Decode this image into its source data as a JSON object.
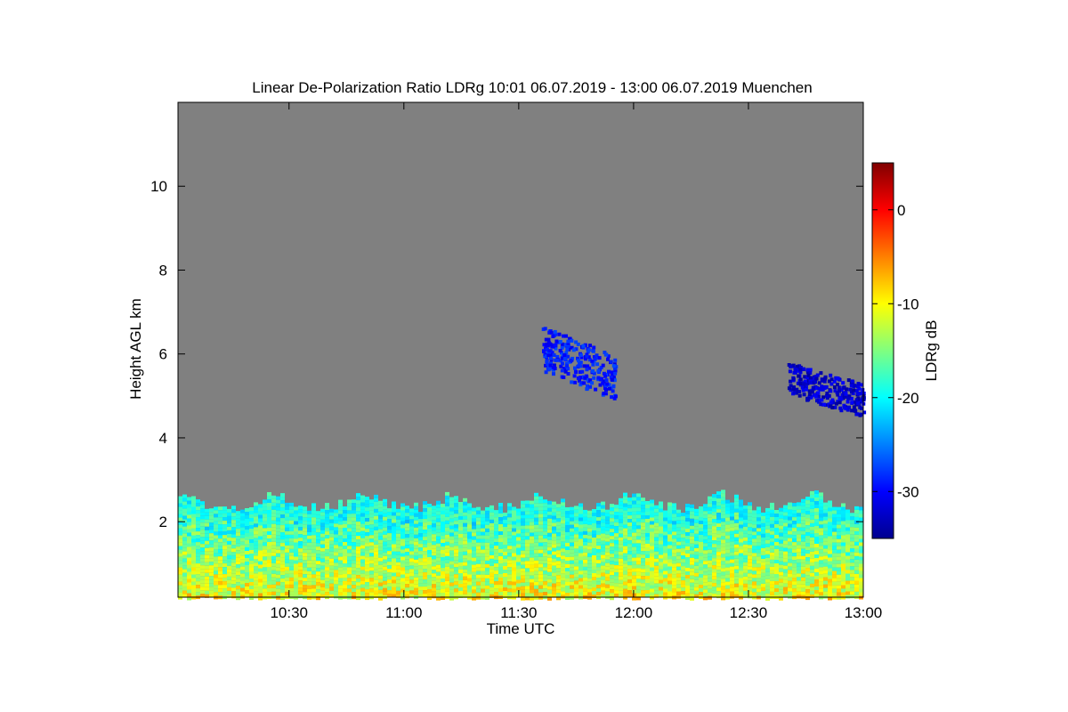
{
  "chart_data": {
    "type": "heatmap",
    "title": "Linear De-Polarization Ratio LDRg   10:01 06.07.2019 - 13:00 06.07.2019 Muenchen",
    "xlabel": "Time UTC",
    "ylabel": "Height AGL km",
    "x_range_minutes_utc": [
      601,
      780
    ],
    "x_ticks": [
      {
        "label": "10:30",
        "value": 630
      },
      {
        "label": "11:00",
        "value": 660
      },
      {
        "label": "11:30",
        "value": 690
      },
      {
        "label": "12:00",
        "value": 720
      },
      {
        "label": "12:30",
        "value": 750
      },
      {
        "label": "13:00",
        "value": 780
      }
    ],
    "ylim": [
      0.2,
      12.0
    ],
    "y_ticks": [
      {
        "label": "2",
        "value": 2
      },
      {
        "label": "4",
        "value": 4
      },
      {
        "label": "6",
        "value": 6
      },
      {
        "label": "8",
        "value": 8
      },
      {
        "label": "10",
        "value": 10
      }
    ],
    "colorbar": {
      "label": "LDRg dB",
      "range": [
        -35,
        5
      ],
      "ticks": [
        {
          "label": "0",
          "value": 0
        },
        {
          "label": "-10",
          "value": -10
        },
        {
          "label": "-20",
          "value": -20
        },
        {
          "label": "-30",
          "value": -30
        }
      ],
      "colormap": "jet"
    },
    "background_color": "#808080",
    "regions": [
      {
        "name": "boundary-layer",
        "time_range": [
          601,
          780
        ],
        "height_range": [
          0.2,
          2.8
        ],
        "ldr_typical": -12
      },
      {
        "name": "cloud-cirrus-1",
        "time_range": [
          696,
          715
        ],
        "height_range": [
          5.0,
          6.8
        ],
        "ldr_typical": -29
      },
      {
        "name": "cloud-cirrus-2",
        "time_range": [
          760,
          780
        ],
        "height_range": [
          4.6,
          5.9
        ],
        "ldr_typical": -32
      }
    ]
  }
}
